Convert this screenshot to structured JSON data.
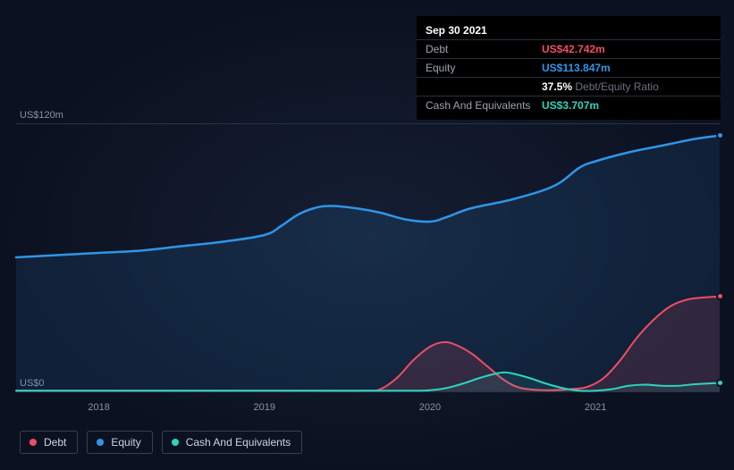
{
  "tooltip": {
    "date": "Sep 30 2021",
    "rows": [
      {
        "label": "Debt",
        "value": "US$42.742m",
        "cls": "c-debt"
      },
      {
        "label": "Equity",
        "value": "US$113.847m",
        "cls": "c-equity"
      },
      {
        "label": "",
        "ratio_value": "37.5%",
        "ratio_label": " Debt/Equity Ratio"
      },
      {
        "label": "Cash And Equivalents",
        "value": "US$3.707m",
        "cls": "c-cash"
      }
    ]
  },
  "chart": {
    "type": "area",
    "background_color": "#0b1120",
    "gridline_color": "#2a3344",
    "y_axis": {
      "min": 0,
      "max": 120,
      "ticks": [
        {
          "v": 0,
          "label": "US$0"
        },
        {
          "v": 120,
          "label": "US$120m"
        }
      ]
    },
    "x_axis": {
      "min": 2017.5,
      "max": 2021.75,
      "ticks": [
        {
          "v": 2018,
          "label": "2018"
        },
        {
          "v": 2019,
          "label": "2019"
        },
        {
          "v": 2020,
          "label": "2020"
        },
        {
          "v": 2021,
          "label": "2021"
        }
      ]
    },
    "series": {
      "equity": {
        "name": "Equity",
        "color": "#2f95e8",
        "fill": "rgba(47,149,232,0.12)",
        "line_width": 2.5,
        "points": [
          [
            2017.5,
            60
          ],
          [
            2017.75,
            61
          ],
          [
            2018.0,
            62
          ],
          [
            2018.25,
            63
          ],
          [
            2018.5,
            65
          ],
          [
            2018.75,
            67
          ],
          [
            2019.0,
            70
          ],
          [
            2019.1,
            74
          ],
          [
            2019.2,
            79
          ],
          [
            2019.3,
            82
          ],
          [
            2019.4,
            83
          ],
          [
            2019.55,
            82
          ],
          [
            2019.7,
            80
          ],
          [
            2019.85,
            77
          ],
          [
            2020.0,
            76
          ],
          [
            2020.1,
            78
          ],
          [
            2020.25,
            82
          ],
          [
            2020.5,
            86
          ],
          [
            2020.75,
            92
          ],
          [
            2020.9,
            100
          ],
          [
            2021.0,
            103
          ],
          [
            2021.2,
            107
          ],
          [
            2021.4,
            110
          ],
          [
            2021.6,
            113
          ],
          [
            2021.75,
            114.5
          ]
        ],
        "end_marker_color": "#2f95e8"
      },
      "debt": {
        "name": "Debt",
        "color": "#ef4d63",
        "fill": "rgba(239,77,99,0.15)",
        "line_width": 2,
        "points": [
          [
            2017.5,
            0.3
          ],
          [
            2018.5,
            0.3
          ],
          [
            2019.3,
            0.3
          ],
          [
            2019.6,
            0.3
          ],
          [
            2019.7,
            1
          ],
          [
            2019.8,
            6
          ],
          [
            2019.9,
            14
          ],
          [
            2020.0,
            20
          ],
          [
            2020.08,
            22
          ],
          [
            2020.15,
            21
          ],
          [
            2020.25,
            17
          ],
          [
            2020.35,
            11
          ],
          [
            2020.45,
            5
          ],
          [
            2020.55,
            1.5
          ],
          [
            2020.7,
            0.5
          ],
          [
            2020.85,
            1
          ],
          [
            2020.95,
            2
          ],
          [
            2021.05,
            6
          ],
          [
            2021.15,
            14
          ],
          [
            2021.25,
            24
          ],
          [
            2021.35,
            32
          ],
          [
            2021.45,
            38
          ],
          [
            2021.55,
            41
          ],
          [
            2021.65,
            42
          ],
          [
            2021.75,
            42.5
          ]
        ],
        "end_marker_color": "#ef4d63"
      },
      "cash": {
        "name": "Cash And Equivalents",
        "color": "#2dd4bf",
        "fill": "rgba(45,212,191,0.10)",
        "line_width": 2,
        "points": [
          [
            2017.5,
            0.3
          ],
          [
            2019.0,
            0.3
          ],
          [
            2019.7,
            0.3
          ],
          [
            2019.9,
            0.3
          ],
          [
            2020.0,
            0.5
          ],
          [
            2020.1,
            1.5
          ],
          [
            2020.2,
            3.5
          ],
          [
            2020.3,
            6
          ],
          [
            2020.4,
            8
          ],
          [
            2020.45,
            8.5
          ],
          [
            2020.5,
            8
          ],
          [
            2020.6,
            6
          ],
          [
            2020.7,
            3.5
          ],
          [
            2020.8,
            1.5
          ],
          [
            2020.9,
            0.3
          ],
          [
            2021.0,
            0.3
          ],
          [
            2021.1,
            1
          ],
          [
            2021.2,
            2.5
          ],
          [
            2021.3,
            3
          ],
          [
            2021.4,
            2.5
          ],
          [
            2021.5,
            2.5
          ],
          [
            2021.6,
            3.2
          ],
          [
            2021.7,
            3.6
          ],
          [
            2021.75,
            3.8
          ]
        ],
        "end_marker_color": "#2dd4bf"
      }
    }
  },
  "legend": [
    {
      "label": "Debt",
      "color": "#ef4d63"
    },
    {
      "label": "Equity",
      "color": "#2f95e8"
    },
    {
      "label": "Cash And Equivalents",
      "color": "#2dd4bf"
    }
  ]
}
